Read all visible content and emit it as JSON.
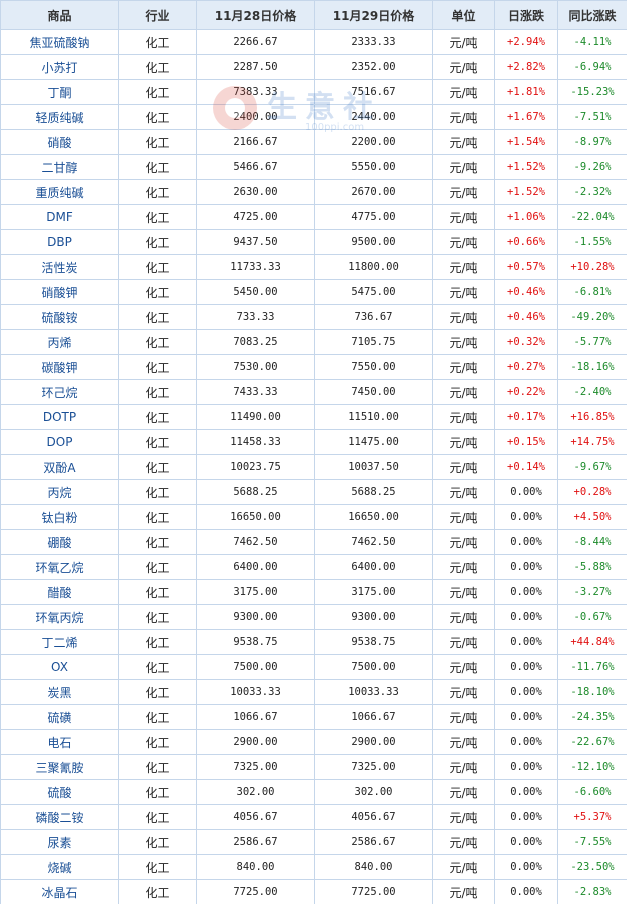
{
  "watermark": {
    "brand": "生意社",
    "url": "100ppi.com"
  },
  "columns": [
    "商品",
    "行业",
    "11月28日价格",
    "11月29日价格",
    "单位",
    "日涨跌",
    "同比涨跌"
  ],
  "rows": [
    [
      "焦亚硫酸钠",
      "化工",
      "2266.67",
      "2333.33",
      "元/吨",
      "+2.94%",
      "-4.11%"
    ],
    [
      "小苏打",
      "化工",
      "2287.50",
      "2352.00",
      "元/吨",
      "+2.82%",
      "-6.94%"
    ],
    [
      "丁酮",
      "化工",
      "7383.33",
      "7516.67",
      "元/吨",
      "+1.81%",
      "-15.23%"
    ],
    [
      "轻质纯碱",
      "化工",
      "2400.00",
      "2440.00",
      "元/吨",
      "+1.67%",
      "-7.51%"
    ],
    [
      "硝酸",
      "化工",
      "2166.67",
      "2200.00",
      "元/吨",
      "+1.54%",
      "-8.97%"
    ],
    [
      "二甘醇",
      "化工",
      "5466.67",
      "5550.00",
      "元/吨",
      "+1.52%",
      "-9.26%"
    ],
    [
      "重质纯碱",
      "化工",
      "2630.00",
      "2670.00",
      "元/吨",
      "+1.52%",
      "-2.32%"
    ],
    [
      "DMF",
      "化工",
      "4725.00",
      "4775.00",
      "元/吨",
      "+1.06%",
      "-22.04%"
    ],
    [
      "DBP",
      "化工",
      "9437.50",
      "9500.00",
      "元/吨",
      "+0.66%",
      "-1.55%"
    ],
    [
      "活性炭",
      "化工",
      "11733.33",
      "11800.00",
      "元/吨",
      "+0.57%",
      "+10.28%"
    ],
    [
      "硝酸钾",
      "化工",
      "5450.00",
      "5475.00",
      "元/吨",
      "+0.46%",
      "-6.81%"
    ],
    [
      "硫酸铵",
      "化工",
      "733.33",
      "736.67",
      "元/吨",
      "+0.46%",
      "-49.20%"
    ],
    [
      "丙烯",
      "化工",
      "7083.25",
      "7105.75",
      "元/吨",
      "+0.32%",
      "-5.77%"
    ],
    [
      "碳酸钾",
      "化工",
      "7530.00",
      "7550.00",
      "元/吨",
      "+0.27%",
      "-18.16%"
    ],
    [
      "环己烷",
      "化工",
      "7433.33",
      "7450.00",
      "元/吨",
      "+0.22%",
      "-2.40%"
    ],
    [
      "DOTP",
      "化工",
      "11490.00",
      "11510.00",
      "元/吨",
      "+0.17%",
      "+16.85%"
    ],
    [
      "DOP",
      "化工",
      "11458.33",
      "11475.00",
      "元/吨",
      "+0.15%",
      "+14.75%"
    ],
    [
      "双酚A",
      "化工",
      "10023.75",
      "10037.50",
      "元/吨",
      "+0.14%",
      "-9.67%"
    ],
    [
      "丙烷",
      "化工",
      "5688.25",
      "5688.25",
      "元/吨",
      "0.00%",
      "+0.28%"
    ],
    [
      "钛白粉",
      "化工",
      "16650.00",
      "16650.00",
      "元/吨",
      "0.00%",
      "+4.50%"
    ],
    [
      "硼酸",
      "化工",
      "7462.50",
      "7462.50",
      "元/吨",
      "0.00%",
      "-8.44%"
    ],
    [
      "环氧乙烷",
      "化工",
      "6400.00",
      "6400.00",
      "元/吨",
      "0.00%",
      "-5.88%"
    ],
    [
      "醋酸",
      "化工",
      "3175.00",
      "3175.00",
      "元/吨",
      "0.00%",
      "-3.27%"
    ],
    [
      "环氧丙烷",
      "化工",
      "9300.00",
      "9300.00",
      "元/吨",
      "0.00%",
      "-0.67%"
    ],
    [
      "丁二烯",
      "化工",
      "9538.75",
      "9538.75",
      "元/吨",
      "0.00%",
      "+44.84%"
    ],
    [
      "OX",
      "化工",
      "7500.00",
      "7500.00",
      "元/吨",
      "0.00%",
      "-11.76%"
    ],
    [
      "炭黑",
      "化工",
      "10033.33",
      "10033.33",
      "元/吨",
      "0.00%",
      "-18.10%"
    ],
    [
      "硫磺",
      "化工",
      "1066.67",
      "1066.67",
      "元/吨",
      "0.00%",
      "-24.35%"
    ],
    [
      "电石",
      "化工",
      "2900.00",
      "2900.00",
      "元/吨",
      "0.00%",
      "-22.67%"
    ],
    [
      "三聚氰胺",
      "化工",
      "7325.00",
      "7325.00",
      "元/吨",
      "0.00%",
      "-12.10%"
    ],
    [
      "硫酸",
      "化工",
      "302.00",
      "302.00",
      "元/吨",
      "0.00%",
      "-6.60%"
    ],
    [
      "磷酸二铵",
      "化工",
      "4056.67",
      "4056.67",
      "元/吨",
      "0.00%",
      "+5.37%"
    ],
    [
      "尿素",
      "化工",
      "2586.67",
      "2586.67",
      "元/吨",
      "0.00%",
      "-7.55%"
    ],
    [
      "烧碱",
      "化工",
      "840.00",
      "840.00",
      "元/吨",
      "0.00%",
      "-23.50%"
    ],
    [
      "冰晶石",
      "化工",
      "7725.00",
      "7725.00",
      "元/吨",
      "0.00%",
      "-2.83%"
    ]
  ],
  "colors": {
    "up": "#e01010",
    "down": "#1c8a2a",
    "header_bg": "#e2ecf7",
    "border": "#c5d6ea",
    "name": "#1a4f95"
  }
}
